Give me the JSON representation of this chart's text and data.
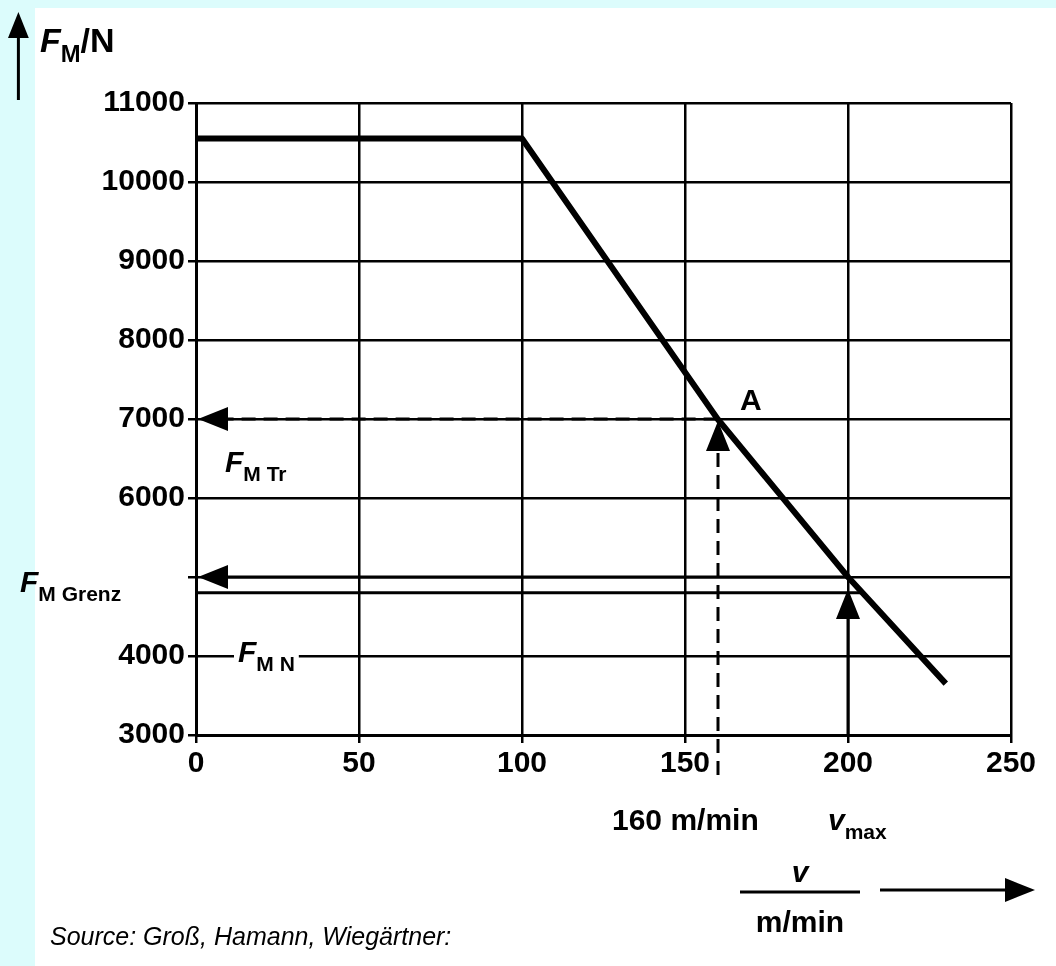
{
  "chart_data": {
    "type": "line",
    "xlabel": "v",
    "ylabel": "F$_{M}$/N",
    "xlim": [
      0,
      250
    ],
    "xticks": [
      0,
      50,
      100,
      150,
      200,
      250
    ],
    "ylim": [
      3000,
      11000
    ],
    "yticks": [
      3000,
      4000,
      {
        "value": 5000,
        "label": null
      },
      6000,
      7000,
      8000,
      9000,
      10000,
      11000
    ],
    "grid": true,
    "legend": false,
    "marker": "none",
    "series": [
      {
        "color": "#000000",
        "x": [
          0,
          100,
          160,
          200,
          230
        ],
        "values": [
          10550,
          10550,
          7000,
          5000,
          3650
        ],
        "line_style": "solid"
      }
    ],
    "ref_lines": [
      {
        "axis": "y",
        "value": 4800,
        "label": "F$_{M N}$",
        "color": "#000000",
        "line_style": "solid"
      }
    ],
    "annotations": [
      "A",
      "F$_{M Tr}$",
      "F$_{M Grenz}$",
      "160 m/min",
      "v$_{max}$",
      "m/min",
      "Source: Groß, Hamann, Wiegärtner:"
    ]
  }
}
